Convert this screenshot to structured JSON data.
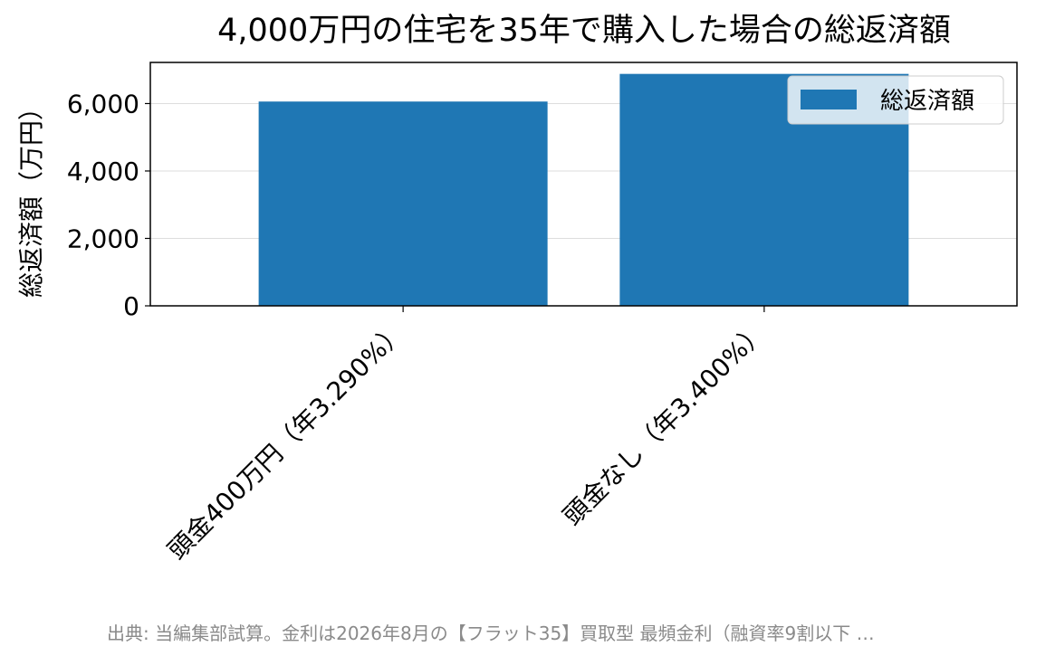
{
  "chart_data": {
    "type": "bar",
    "title": "4,000万円の住宅を35年で購入した場合の総返済額",
    "ylabel": "総返済額（万円）",
    "xlabel": "",
    "categories": [
      "頭金400万円（年3.290%）",
      "頭金なし（年3.400%）"
    ],
    "series": [
      {
        "name": "総返済額",
        "values": [
          6060,
          6880
        ]
      }
    ],
    "ylim": [
      0,
      7220
    ],
    "yticks": [
      0,
      2000,
      4000,
      6000
    ],
    "ytick_labels": [
      "0",
      "2,000",
      "4,000",
      "6,000"
    ],
    "grid": "y",
    "legend": "top-right",
    "bar_color": "#1f77b4"
  },
  "footer": "出典: 当編集部試算。金利は2026年8月の【フラット35】買取型 最頻金利（融資率9割以下 …"
}
